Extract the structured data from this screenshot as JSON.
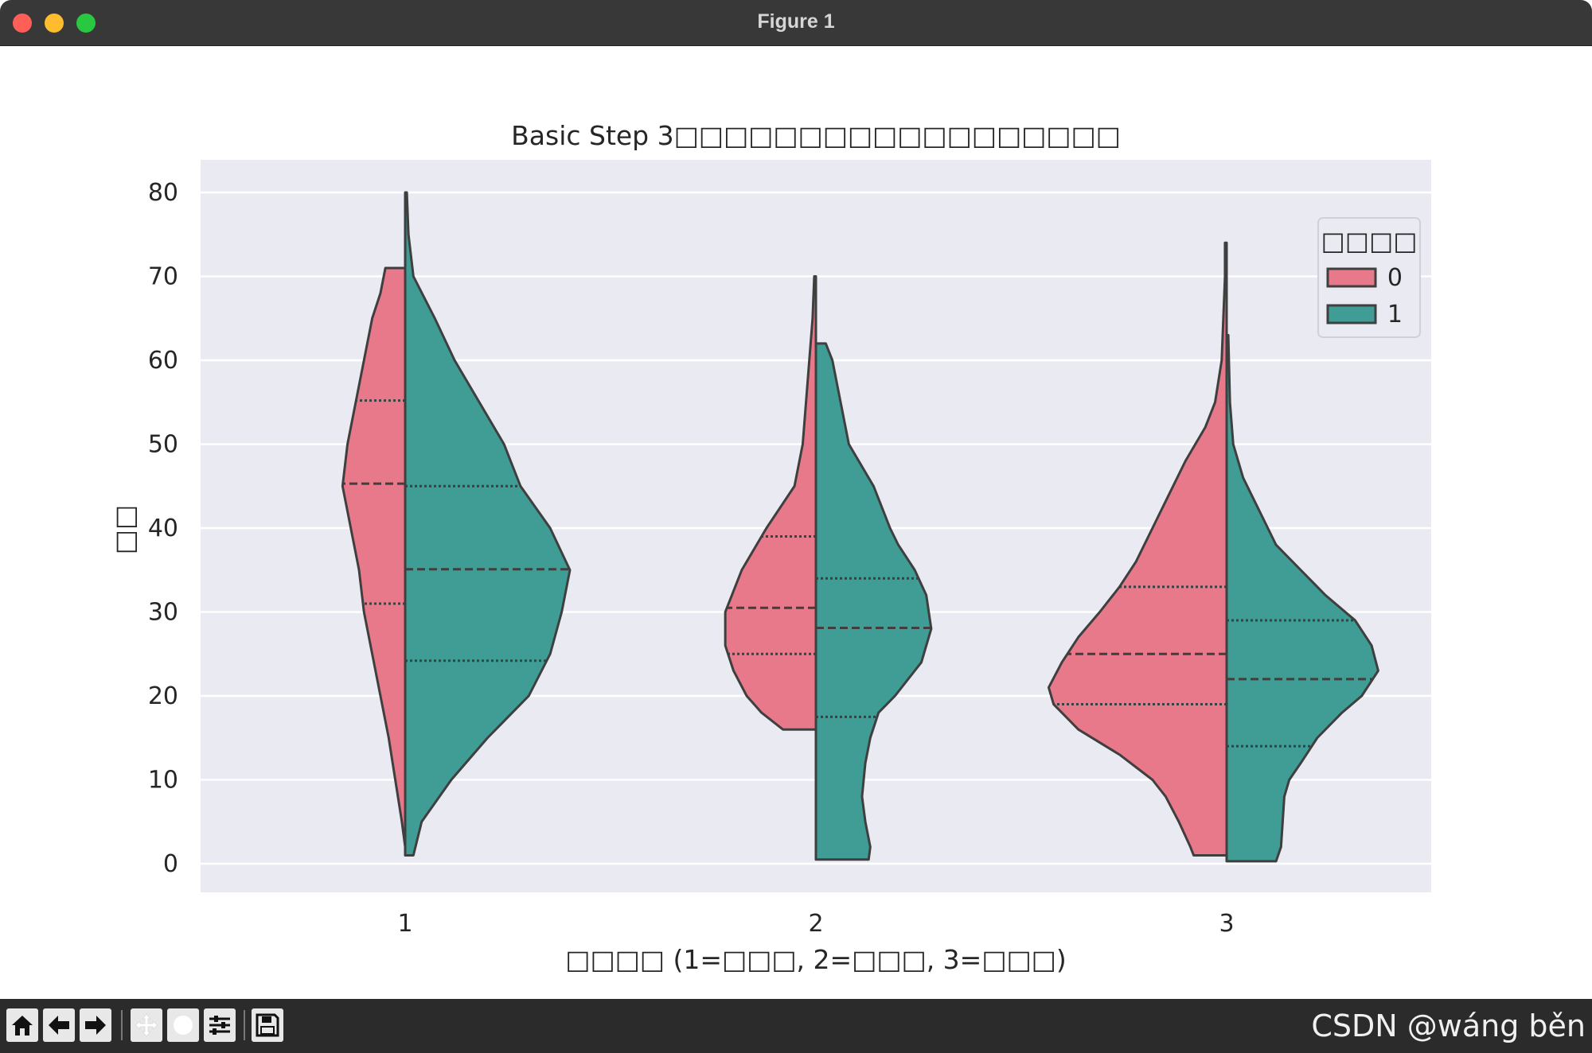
{
  "window": {
    "title": "Figure 1"
  },
  "toolbar": {
    "buttons": [
      "home-icon",
      "back-icon",
      "forward-icon",
      "pan-icon",
      "zoom-icon",
      "configure-subplots-icon",
      "save-icon"
    ],
    "watermark": "CSDN @wáng běn"
  },
  "chart_data": {
    "type": "violin",
    "title": "Basic Step 3□□□□□□□□□□□□□□□□□□",
    "xlabel": "□□□□ (1=□□□, 2=□□□, 3=□□□)",
    "ylabel": "□□",
    "categories": [
      "1",
      "2",
      "3"
    ],
    "ylim": [
      -3.5,
      84
    ],
    "yticks": [
      0,
      10,
      20,
      30,
      40,
      50,
      60,
      70,
      80
    ],
    "grid": true,
    "split": true,
    "inner": "quartile",
    "legend": {
      "title": "□□□□",
      "placement": "top-right",
      "entries": [
        "0",
        "1"
      ]
    },
    "colors": {
      "0": "#e8798b",
      "1": "#3f9d95",
      "background": "#eaeaf2",
      "edge": "#3f3f3f"
    },
    "series": [
      {
        "name": "0",
        "violins": [
          {
            "category": "1",
            "range": [
              2,
              71
            ],
            "quartiles": [
              31,
              45.3,
              55.2
            ],
            "profile": [
              [
                2,
                0
              ],
              [
                5,
                0.02
              ],
              [
                10,
                0.06
              ],
              [
                15,
                0.1
              ],
              [
                20,
                0.15
              ],
              [
                25,
                0.2
              ],
              [
                30,
                0.25
              ],
              [
                35,
                0.28
              ],
              [
                40,
                0.33
              ],
              [
                45,
                0.38
              ],
              [
                50,
                0.35
              ],
              [
                55,
                0.3
              ],
              [
                60,
                0.25
              ],
              [
                65,
                0.2
              ],
              [
                68,
                0.15
              ],
              [
                71,
                0.12
              ]
            ]
          },
          {
            "category": "2",
            "range": [
              16,
              70
            ],
            "quartiles": [
              25,
              30.5,
              39
            ],
            "profile": [
              [
                16,
                0.2
              ],
              [
                18,
                0.33
              ],
              [
                20,
                0.42
              ],
              [
                23,
                0.5
              ],
              [
                26,
                0.55
              ],
              [
                30,
                0.55
              ],
              [
                35,
                0.45
              ],
              [
                40,
                0.3
              ],
              [
                45,
                0.13
              ],
              [
                50,
                0.08
              ],
              [
                55,
                0.06
              ],
              [
                60,
                0.04
              ],
              [
                65,
                0.02
              ],
              [
                70,
                0.01
              ]
            ]
          },
          {
            "category": "3",
            "range": [
              1,
              74
            ],
            "quartiles": [
              19,
              25,
              33
            ],
            "profile": [
              [
                1,
                0.2
              ],
              [
                2,
                0.22
              ],
              [
                5,
                0.29
              ],
              [
                8,
                0.37
              ],
              [
                10,
                0.45
              ],
              [
                13,
                0.65
              ],
              [
                16,
                0.9
              ],
              [
                19,
                1.05
              ],
              [
                21,
                1.08
              ],
              [
                24,
                1
              ],
              [
                27,
                0.9
              ],
              [
                30,
                0.77
              ],
              [
                33,
                0.65
              ],
              [
                36,
                0.55
              ],
              [
                40,
                0.45
              ],
              [
                44,
                0.35
              ],
              [
                48,
                0.25
              ],
              [
                52,
                0.13
              ],
              [
                55,
                0.07
              ],
              [
                60,
                0.03
              ],
              [
                65,
                0.02
              ],
              [
                70,
                0.01
              ],
              [
                74,
                0.01
              ]
            ]
          }
        ]
      },
      {
        "name": "1",
        "violins": [
          {
            "category": "1",
            "range": [
              1,
              80
            ],
            "quartiles": [
              24.2,
              35.1,
              45
            ],
            "profile": [
              [
                1,
                0.05
              ],
              [
                5,
                0.1
              ],
              [
                10,
                0.28
              ],
              [
                15,
                0.5
              ],
              [
                20,
                0.75
              ],
              [
                25,
                0.88
              ],
              [
                30,
                0.95
              ],
              [
                35,
                1
              ],
              [
                40,
                0.88
              ],
              [
                45,
                0.7
              ],
              [
                50,
                0.6
              ],
              [
                55,
                0.45
              ],
              [
                60,
                0.3
              ],
              [
                65,
                0.18
              ],
              [
                70,
                0.05
              ],
              [
                75,
                0.02
              ],
              [
                80,
                0.01
              ]
            ]
          },
          {
            "category": "2",
            "range": [
              0.5,
              62
            ],
            "quartiles": [
              17.5,
              28.1,
              34
            ],
            "profile": [
              [
                0.5,
                0.32
              ],
              [
                2,
                0.33
              ],
              [
                5,
                0.3
              ],
              [
                8,
                0.28
              ],
              [
                10,
                0.29
              ],
              [
                12,
                0.3
              ],
              [
                15,
                0.33
              ],
              [
                18,
                0.38
              ],
              [
                20,
                0.48
              ],
              [
                24,
                0.64
              ],
              [
                28,
                0.7
              ],
              [
                32,
                0.67
              ],
              [
                35,
                0.6
              ],
              [
                38,
                0.5
              ],
              [
                40,
                0.45
              ],
              [
                45,
                0.35
              ],
              [
                50,
                0.2
              ],
              [
                55,
                0.15
              ],
              [
                60,
                0.1
              ],
              [
                62,
                0.06
              ]
            ]
          },
          {
            "category": "3",
            "range": [
              0.3,
              63
            ],
            "quartiles": [
              14,
              22,
              29
            ],
            "profile": [
              [
                0.3,
                0.3
              ],
              [
                2,
                0.33
              ],
              [
                5,
                0.34
              ],
              [
                8,
                0.35
              ],
              [
                10,
                0.38
              ],
              [
                12,
                0.45
              ],
              [
                15,
                0.55
              ],
              [
                18,
                0.7
              ],
              [
                20,
                0.82
              ],
              [
                23,
                0.92
              ],
              [
                26,
                0.88
              ],
              [
                29,
                0.78
              ],
              [
                32,
                0.6
              ],
              [
                35,
                0.45
              ],
              [
                38,
                0.3
              ],
              [
                42,
                0.2
              ],
              [
                46,
                0.1
              ],
              [
                50,
                0.04
              ],
              [
                55,
                0.02
              ],
              [
                63,
                0.01
              ]
            ]
          }
        ]
      }
    ]
  }
}
